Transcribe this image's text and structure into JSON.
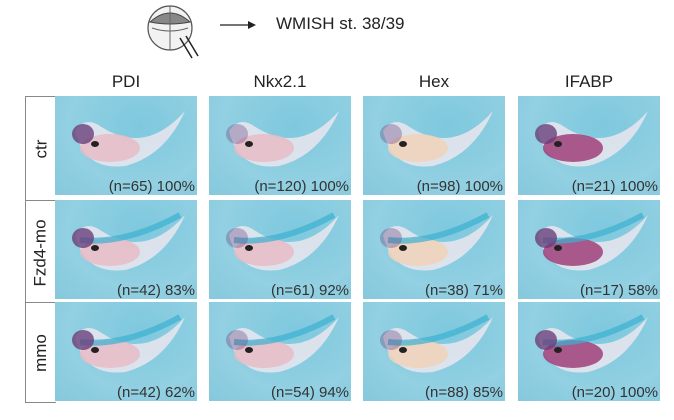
{
  "header": {
    "title": "WMISH st. 38/39",
    "arrow_icon": "right-arrow-icon",
    "schema_icon": "injected-embryo-icon"
  },
  "columns": [
    "PDI",
    "Nkx2.1",
    "Hex",
    "IFABP"
  ],
  "rows": [
    {
      "label": "ctr",
      "counts": [
        "(n=65) 100%",
        "(n=120) 100%",
        "(n=98) 100%",
        "(n=21) 100%"
      ]
    },
    {
      "label": "Fzd4-mo",
      "counts": [
        "(n=42) 83%",
        "(n=61) 92%",
        "(n=38) 71%",
        "(n=17) 58%"
      ]
    },
    {
      "label": "mmo",
      "counts": [
        "(n=42) 62%",
        "(n=54) 94%",
        "(n=88) 85%",
        "(n=20) 100%"
      ]
    }
  ],
  "colors": {
    "background": "#8ecfe1",
    "stain_purple": "#6a3f7a",
    "yolk_pink": "#e6b9c3"
  }
}
